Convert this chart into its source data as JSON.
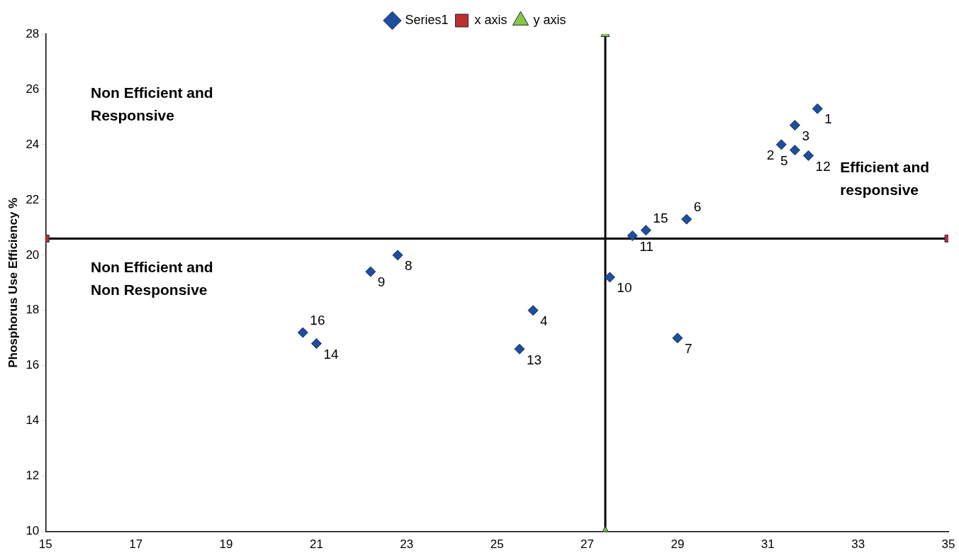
{
  "chart_data": {
    "type": "scatter",
    "ylabel": "Phosphorus Use Efficiency %",
    "xlim": [
      15,
      35
    ],
    "xticks": [
      15,
      17,
      19,
      21,
      23,
      25,
      27,
      29,
      31,
      33,
      35
    ],
    "ylim": [
      10,
      28
    ],
    "yticks": [
      10,
      12,
      14,
      16,
      18,
      20,
      22,
      24,
      26,
      28
    ],
    "grid": false,
    "legend": "top",
    "series": [
      {
        "name": "Series1",
        "marker": "diamond",
        "color": "#1f4e9c",
        "x": [
          32.1,
          31.3,
          31.6,
          25.8,
          31.6,
          29.2,
          29.0,
          22.8,
          22.2,
          27.5,
          28.0,
          31.9,
          25.5,
          21.0,
          28.3,
          20.7
        ],
        "values": [
          25.3,
          24.0,
          24.7,
          18.0,
          23.8,
          21.3,
          17.0,
          20.0,
          19.4,
          19.2,
          20.7,
          23.6,
          16.6,
          16.8,
          20.9,
          17.2
        ]
      },
      {
        "name": "x axis",
        "type": "line",
        "marker": "square",
        "color": "#000000",
        "colors": [
          "#c0302a",
          "#c0302a"
        ],
        "x": [
          15,
          35
        ],
        "values": [
          20.6,
          20.6
        ]
      },
      {
        "name": "y axis",
        "type": "line",
        "marker": "triangle",
        "color": "#000000",
        "colors": [
          "#8cc63f",
          "#8cc63f"
        ],
        "x": [
          27.4,
          27.4
        ],
        "values": [
          10,
          28
        ]
      }
    ],
    "annotations": [
      "Non Efficient and Responsive",
      "Non Efficient and Non Responsive",
      "Efficient and responsive",
      {
        "text": "1",
        "x": 32.1,
        "y": 25.3
      },
      {
        "text": "2",
        "x": 31.3,
        "y": 24.0
      },
      {
        "text": "3",
        "x": 31.6,
        "y": 24.7
      },
      {
        "text": "4",
        "x": 25.8,
        "y": 18.0
      },
      {
        "text": "5",
        "x": 31.6,
        "y": 23.8
      },
      {
        "text": "6",
        "x": 29.2,
        "y": 21.3
      },
      {
        "text": "7",
        "x": 29.0,
        "y": 17.0
      },
      {
        "text": "8",
        "x": 22.8,
        "y": 20.0
      },
      {
        "text": "9",
        "x": 22.2,
        "y": 19.4
      },
      {
        "text": "10",
        "x": 27.5,
        "y": 19.2
      },
      {
        "text": "11",
        "x": 28.0,
        "y": 20.7
      },
      {
        "text": "12",
        "x": 31.9,
        "y": 23.6
      },
      {
        "text": "13",
        "x": 25.5,
        "y": 16.6
      },
      {
        "text": "14",
        "x": 21.0,
        "y": 16.8
      },
      {
        "text": "15",
        "x": 28.3,
        "y": 20.9
      },
      {
        "text": "16",
        "x": 20.7,
        "y": 17.2
      }
    ]
  }
}
